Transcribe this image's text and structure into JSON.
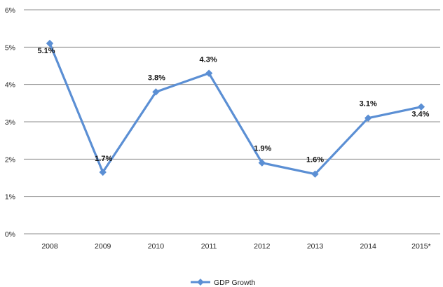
{
  "chart_data": {
    "type": "line",
    "categories": [
      "2008",
      "2009",
      "2010",
      "2011",
      "2012",
      "2013",
      "2014",
      "2015*"
    ],
    "series": [
      {
        "name": "GDP Growth",
        "values": [
          5.1,
          1.65,
          3.8,
          4.3,
          1.9,
          1.6,
          3.1,
          3.4
        ],
        "data_labels": [
          "5.1%",
          "1.7%",
          "3.8%",
          "4.3%",
          "1.9%",
          "1.6%",
          "3.1%",
          "3.4%"
        ],
        "color": "#5B8FD4"
      }
    ],
    "y_ticks": [
      "0%",
      "1%",
      "2%",
      "3%",
      "4%",
      "5%",
      "6%"
    ],
    "ylim": [
      0,
      6
    ],
    "grid": true,
    "legend_position": "bottom",
    "marker": "diamond"
  }
}
